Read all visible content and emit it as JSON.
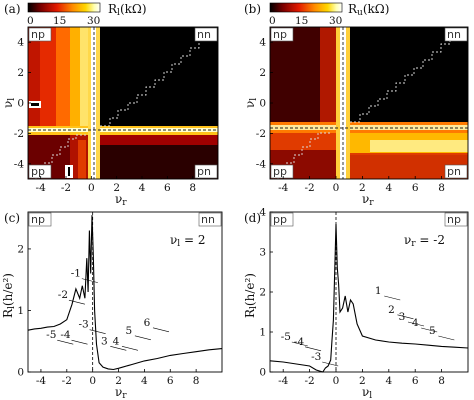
{
  "chart_data": [
    {
      "type": "heatmap",
      "panel": "(a)",
      "colorbar": {
        "label": "R_l(kΩ)",
        "ticks": [
          "0",
          "15",
          "30"
        ],
        "range": [
          0,
          30
        ]
      },
      "xlabel": "ν_r",
      "ylabel": "ν_l",
      "xlim": [
        -5,
        10
      ],
      "ylim": [
        -5,
        5
      ],
      "xticks": [
        "-4",
        "-2",
        "0",
        "2",
        "4",
        "6",
        "8"
      ],
      "yticks": [
        "-4",
        "-2",
        "0",
        "2",
        "4"
      ],
      "quadrants": [
        "np",
        "nn",
        "pp",
        "pn"
      ],
      "colors": [
        "#000000",
        "#8b0000",
        "#e21a00",
        "#ff8c00",
        "#ffd700",
        "#ffffe0",
        "#ffffff"
      ]
    },
    {
      "type": "heatmap",
      "panel": "(b)",
      "colorbar": {
        "label": "R_u(kΩ)",
        "ticks": [
          "0",
          "15",
          "30"
        ],
        "range": [
          0,
          30
        ]
      },
      "xlabel": "ν_r",
      "ylabel": "ν_l",
      "xlim": [
        -5,
        10
      ],
      "ylim": [
        -5,
        5
      ],
      "xticks": [
        "-4",
        "-2",
        "0",
        "2",
        "4",
        "6",
        "8"
      ],
      "yticks": [
        "-4",
        "-2",
        "0",
        "2",
        "4"
      ],
      "quadrants": [
        "np",
        "nn",
        "pp",
        "pn"
      ]
    },
    {
      "type": "line",
      "panel": "(c)",
      "xlabel": "ν_r",
      "ylabel": "R_l(h/e²)",
      "xlim": [
        -5,
        10
      ],
      "ylim": [
        0,
        2.6
      ],
      "xticks": [
        "-4",
        "-2",
        "0",
        "2",
        "4",
        "6",
        "8"
      ],
      "yticks": [
        "0",
        "1",
        "2"
      ],
      "quadrants": [
        "np",
        "nn"
      ],
      "annotation": "ν_l = 2",
      "x": [
        -5,
        -4.5,
        -4,
        -3.5,
        -3,
        -2.5,
        -2,
        -1.6,
        -1.3,
        -1.0,
        -0.8,
        -0.6,
        -0.45,
        -0.35,
        -0.25,
        -0.15,
        -0.05,
        0.05,
        0.15,
        0.3,
        0.5,
        0.8,
        1.2,
        1.6,
        2,
        3,
        4,
        5,
        6,
        7,
        8,
        9,
        10
      ],
      "y": [
        0.68,
        0.7,
        0.71,
        0.73,
        0.74,
        0.78,
        0.85,
        1.1,
        1.35,
        1.2,
        1.4,
        1.2,
        1.85,
        1.3,
        2.3,
        1.6,
        2.55,
        1.9,
        1.0,
        0.45,
        0.15,
        0.08,
        0.05,
        0.04,
        0.06,
        0.12,
        0.18,
        0.22,
        0.27,
        0.3,
        0.33,
        0.36,
        0.38
      ],
      "labels": [
        {
          "text": "-1",
          "x": -1.3,
          "y": 1.55
        },
        {
          "text": "-2",
          "x": -2.3,
          "y": 1.2
        },
        {
          "text": "-3",
          "x": -0.7,
          "y": 0.72
        },
        {
          "text": "-4",
          "x": -2.1,
          "y": 0.55
        },
        {
          "text": "-5",
          "x": -3.2,
          "y": 0.55
        },
        {
          "text": "3",
          "x": 0.9,
          "y": 0.45
        },
        {
          "text": "4",
          "x": 1.8,
          "y": 0.45
        },
        {
          "text": "5",
          "x": 2.8,
          "y": 0.62
        },
        {
          "text": "6",
          "x": 4.2,
          "y": 0.75
        }
      ]
    },
    {
      "type": "line",
      "panel": "(d)",
      "xlabel": "ν_l",
      "ylabel": "R_l(h/e²)",
      "xlim": [
        -5,
        10
      ],
      "ylim": [
        0,
        4
      ],
      "xticks": [
        "-4",
        "-2",
        "0",
        "2",
        "4",
        "6",
        "8"
      ],
      "yticks": [
        "0",
        "1",
        "2",
        "3",
        "4"
      ],
      "quadrants": [
        "pp",
        "np"
      ],
      "annotation": "ν_r = -2",
      "x": [
        -5,
        -4,
        -3,
        -2,
        -1.5,
        -1,
        -0.8,
        -0.6,
        -0.4,
        -0.3,
        -0.2,
        -0.1,
        0,
        0.1,
        0.2,
        0.3,
        0.5,
        0.7,
        0.9,
        1.1,
        1.3,
        1.6,
        2,
        3,
        4,
        5,
        6,
        7,
        8,
        9,
        10
      ],
      "y": [
        0.28,
        0.25,
        0.2,
        0.15,
        0.05,
        0.0,
        0.1,
        0.15,
        0.3,
        0.8,
        1.3,
        2.5,
        3.7,
        2.6,
        2.2,
        1.5,
        1.6,
        1.9,
        1.5,
        1.8,
        1.7,
        1.2,
        0.9,
        0.8,
        0.75,
        0.72,
        0.7,
        0.67,
        0.64,
        0.62,
        0.6
      ],
      "labels": [
        {
          "text": "1",
          "x": 3.2,
          "y": 1.95
        },
        {
          "text": "2",
          "x": 4.2,
          "y": 1.48
        },
        {
          "text": "3",
          "x": 5.0,
          "y": 1.3
        },
        {
          "text": "4",
          "x": 6.0,
          "y": 1.15
        },
        {
          "text": "5",
          "x": 7.3,
          "y": 0.95
        },
        {
          "text": "-5",
          "x": -3.8,
          "y": 0.8
        },
        {
          "text": "-4",
          "x": -2.8,
          "y": 0.68
        },
        {
          "text": "-3",
          "x": -1.5,
          "y": 0.3
        }
      ]
    }
  ]
}
